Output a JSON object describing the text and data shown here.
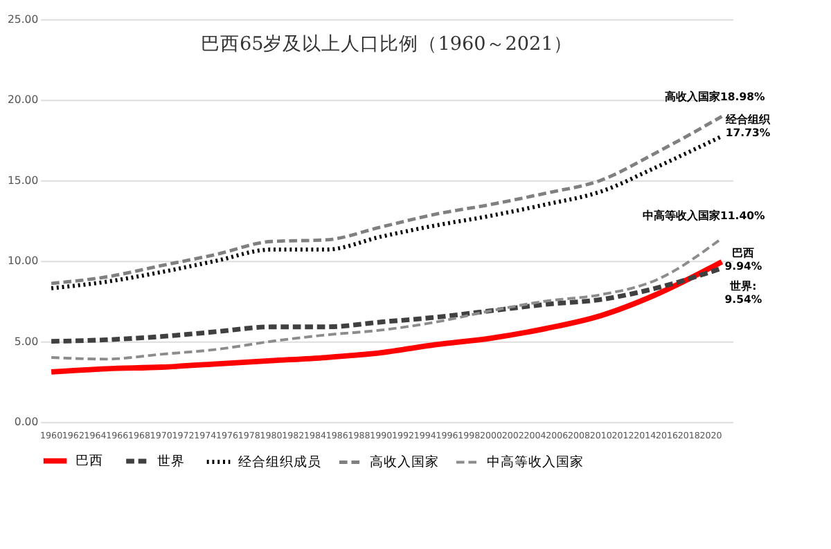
{
  "chart_data": {
    "type": "line",
    "title": "巴西65岁及以上人口比例（1960～2021）",
    "x": [
      1960,
      1965,
      1970,
      1975,
      1980,
      1985,
      1990,
      1995,
      2000,
      2005,
      2010,
      2015,
      2021
    ],
    "xlim": [
      1959,
      2022
    ],
    "xticks": [
      1960,
      1962,
      1964,
      1966,
      1968,
      1970,
      1972,
      1974,
      1976,
      1978,
      1980,
      1982,
      1984,
      1986,
      1988,
      1990,
      1992,
      1994,
      1996,
      1998,
      2000,
      2002,
      2004,
      2006,
      2008,
      2010,
      2012,
      2014,
      2016,
      2018,
      2020
    ],
    "ylim": [
      0,
      25
    ],
    "yticks": [
      {
        "value": 0,
        "label": "0.00"
      },
      {
        "value": 5,
        "label": "5.00"
      },
      {
        "value": 10,
        "label": "10.00"
      },
      {
        "value": 15,
        "label": "15.00"
      },
      {
        "value": 20,
        "label": "20.00"
      },
      {
        "value": 25,
        "label": "25.00"
      }
    ],
    "grid": "y",
    "legend": "bottom",
    "marker": "none",
    "series": [
      {
        "name": "巴西",
        "color": "#ff0000",
        "line_style": "solid",
        "values": [
          3.1,
          3.3,
          3.4,
          3.6,
          3.8,
          4.0,
          4.3,
          4.8,
          5.2,
          5.8,
          6.6,
          7.9,
          9.94
        ]
      },
      {
        "name": "世界",
        "color": "#404040",
        "line_style": "dashed",
        "values": [
          5.0,
          5.1,
          5.3,
          5.6,
          5.9,
          5.9,
          6.2,
          6.5,
          6.9,
          7.3,
          7.6,
          8.3,
          9.54
        ]
      },
      {
        "name": "经合组织成员",
        "color": "#000000",
        "line_style": "dotted",
        "values": [
          8.3,
          8.7,
          9.3,
          10.0,
          10.7,
          10.7,
          11.5,
          12.2,
          12.8,
          13.5,
          14.3,
          15.8,
          17.73
        ]
      },
      {
        "name": "高收入国家",
        "color": "#808080",
        "line_style": "dashed",
        "values": [
          8.6,
          9.0,
          9.7,
          10.4,
          11.2,
          11.3,
          12.1,
          12.9,
          13.5,
          14.2,
          15.0,
          16.7,
          18.96
        ]
      },
      {
        "name": "中高等收入国家",
        "color": "#8c8c8c",
        "line_style": "dashed",
        "values": [
          4.0,
          3.9,
          4.2,
          4.5,
          5.0,
          5.4,
          5.7,
          6.2,
          6.9,
          7.5,
          7.9,
          8.8,
          11.4
        ]
      }
    ],
    "annotations": [
      "高收入国家18.98%",
      "经合组织\n17.73%",
      "中高等收入国家11.40%",
      "巴西\n9.94%",
      "世界:\n9.54%"
    ]
  }
}
